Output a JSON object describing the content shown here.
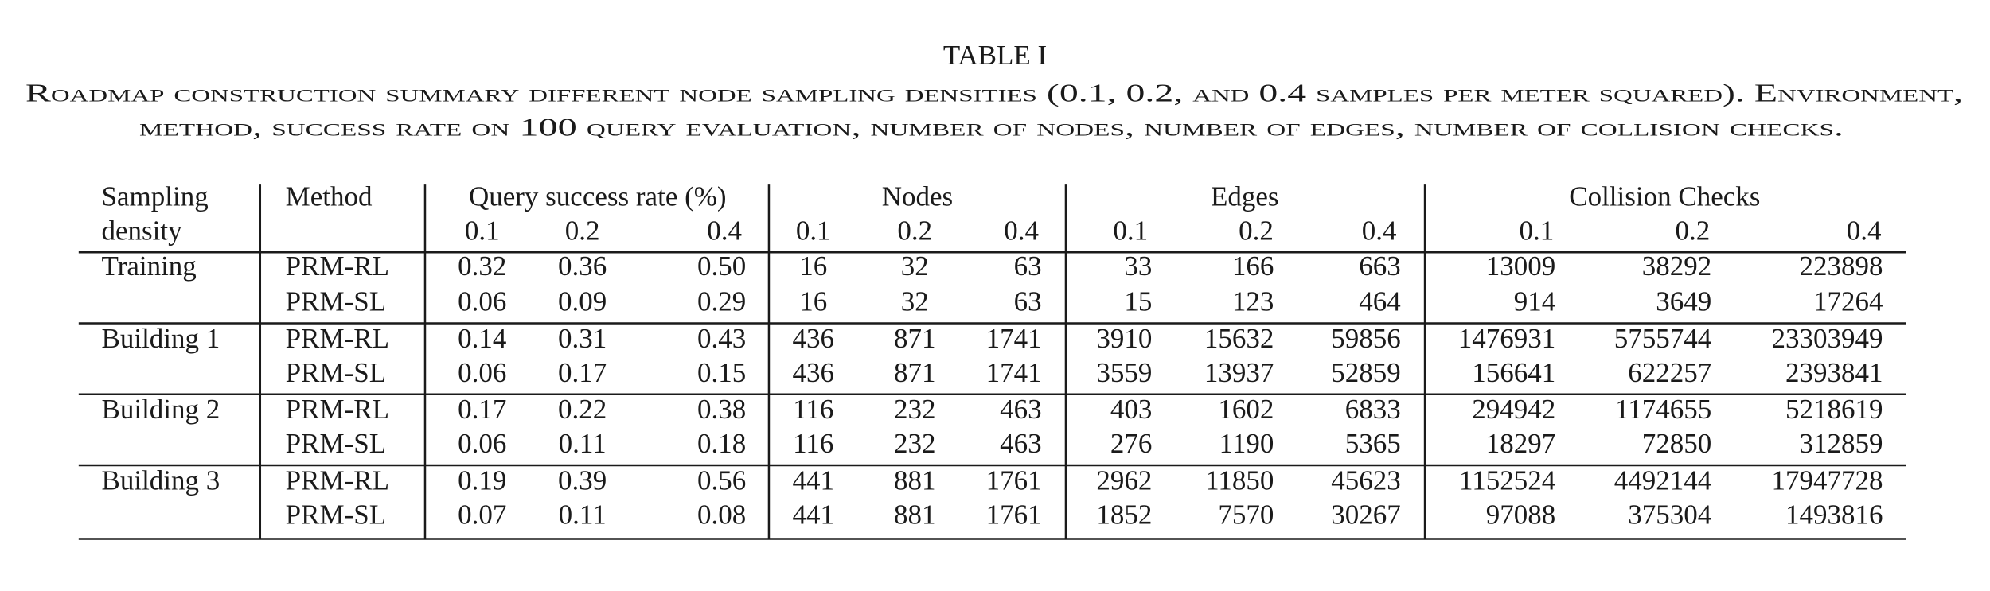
{
  "title": "TABLE I",
  "caption": [
    "Roadmap construction summary different node sampling densities (0.1, 0.2, and 0.4 samples per meter squared). Environment,",
    "method, success rate on 100 query evaluation, number of nodes, number of edges, number of collision checks."
  ],
  "table": {
    "header_row1": [
      "Sampling",
      "Method",
      "Query success rate (%)",
      "Nodes",
      "Edges",
      "Collision Checks"
    ],
    "header_row2": [
      "density",
      "0.1",
      "0.2",
      "0.4",
      "0.1",
      "0.2",
      "0.4",
      "0.1",
      "0.2",
      "0.4",
      "0.1",
      "0.2",
      "0.4"
    ],
    "groups": [
      {
        "environment": "Training",
        "rows": [
          {
            "method": "PRM-RL",
            "values": [
              "0.32",
              "0.36",
              "0.50",
              "16",
              "32",
              "63",
              "33",
              "166",
              "663",
              "13009",
              "38292",
              "223898"
            ]
          },
          {
            "method": "PRM-SL",
            "values": [
              "0.06",
              "0.09",
              "0.29",
              "16",
              "32",
              "63",
              "15",
              "123",
              "464",
              "914",
              "3649",
              "17264"
            ]
          }
        ]
      },
      {
        "environment": "Building 1",
        "rows": [
          {
            "method": "PRM-RL",
            "values": [
              "0.14",
              "0.31",
              "0.43",
              "436",
              "871",
              "1741",
              "3910",
              "15632",
              "59856",
              "1476931",
              "5755744",
              "23303949"
            ]
          },
          {
            "method": "PRM-SL",
            "values": [
              "0.06",
              "0.17",
              "0.15",
              "436",
              "871",
              "1741",
              "3559",
              "13937",
              "52859",
              "156641",
              "622257",
              "2393841"
            ]
          }
        ]
      },
      {
        "environment": "Building 2",
        "rows": [
          {
            "method": "PRM-RL",
            "values": [
              "0.17",
              "0.22",
              "0.38",
              "116",
              "232",
              "463",
              "403",
              "1602",
              "6833",
              "294942",
              "1174655",
              "5218619"
            ]
          },
          {
            "method": "PRM-SL",
            "values": [
              "0.06",
              "0.11",
              "0.18",
              "116",
              "232",
              "463",
              "276",
              "1190",
              "5365",
              "18297",
              "72850",
              "312859"
            ]
          }
        ]
      },
      {
        "environment": "Building 3",
        "rows": [
          {
            "method": "PRM-RL",
            "values": [
              "0.19",
              "0.39",
              "0.56",
              "441",
              "881",
              "1761",
              "2962",
              "11850",
              "45623",
              "1152524",
              "4492144",
              "17947728"
            ]
          },
          {
            "method": "PRM-SL",
            "values": [
              "0.07",
              "0.11",
              "0.08",
              "441",
              "881",
              "1761",
              "1852",
              "7570",
              "30267",
              "97088",
              "375304",
              "1493816"
            ]
          }
        ]
      }
    ]
  }
}
